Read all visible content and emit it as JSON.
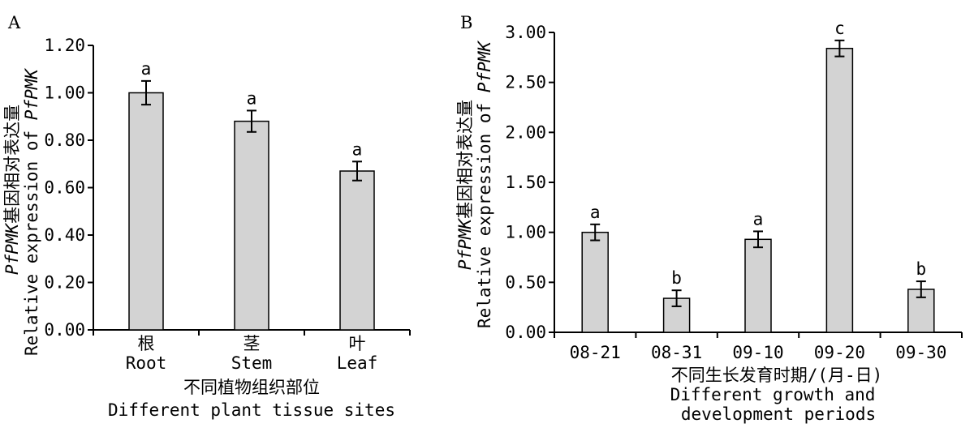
{
  "chart_data": [
    {
      "panel": "A",
      "type": "bar",
      "categories": [
        {
          "zh": "根",
          "en": "Root"
        },
        {
          "zh": "茎",
          "en": "Stem"
        },
        {
          "zh": "叶",
          "en": "Leaf"
        }
      ],
      "values": [
        1.0,
        0.88,
        0.67
      ],
      "errors": [
        0.05,
        0.045,
        0.04
      ],
      "significance": [
        "a",
        "a",
        "a"
      ],
      "ylim": [
        0,
        1.2
      ],
      "yticks": [
        "0.00",
        "0.20",
        "0.40",
        "0.60",
        "0.80",
        "1.00",
        "1.20"
      ],
      "ylabel_line1_italic": "PfPMK",
      "ylabel_line1_zh": "基因相对表达量",
      "ylabel_line2": "Relative expression of ",
      "ylabel_line2_italic": "PfPMK",
      "xlabel_zh": "不同植物组织部位",
      "xlabel_en": "Different plant tissue sites",
      "bar_color": "#d3d3d3"
    },
    {
      "panel": "B",
      "type": "bar",
      "categories": [
        {
          "zh": "",
          "en": "08-21"
        },
        {
          "zh": "",
          "en": "08-31"
        },
        {
          "zh": "",
          "en": "09-10"
        },
        {
          "zh": "",
          "en": "09-20"
        },
        {
          "zh": "",
          "en": "09-30"
        }
      ],
      "values": [
        1.0,
        0.34,
        0.93,
        2.84,
        0.43
      ],
      "errors": [
        0.08,
        0.08,
        0.08,
        0.08,
        0.08
      ],
      "significance": [
        "a",
        "b",
        "a",
        "c",
        "b"
      ],
      "ylim": [
        0,
        3.0
      ],
      "yticks": [
        "0.00",
        "0.50",
        "1.00",
        "1.50",
        "2.00",
        "2.50",
        "3.00"
      ],
      "ylabel_line1_italic": "PfPMK",
      "ylabel_line1_zh": "基因相对表达量",
      "ylabel_line2": "Relative expression of ",
      "ylabel_line2_italic": "PfPMK",
      "xlabel_zh": "不同生长发育时期/(月-日)",
      "xlabel_en": "Different growth and",
      "xlabel_en2": "development periods",
      "bar_color": "#d3d3d3"
    }
  ]
}
